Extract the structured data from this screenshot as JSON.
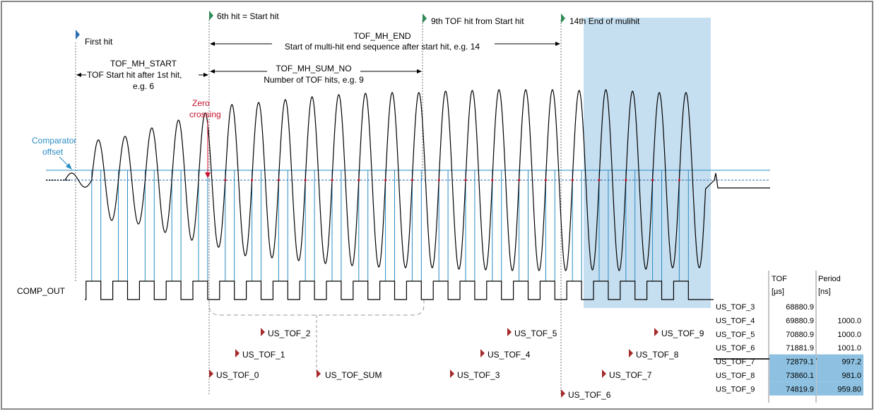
{
  "markers": {
    "first_hit": "First hit",
    "start_hit": "6th hit = Start hit",
    "ninth_hit": "9th TOF hit from Start hit",
    "end_hit": "14th End of mulihit"
  },
  "annotations": {
    "mh_start_title": "TOF_MH_START",
    "mh_start_desc1": "TOF Start hit after 1st hit,",
    "mh_start_desc2": "e.g. 6",
    "mh_end_title": "TOF_MH_END",
    "mh_end_desc": "Start of multi-hit end sequence after start hit, e.g. 14",
    "mh_sum_title": "TOF_MH_SUM_NO",
    "mh_sum_desc": "Number of TOF hits, e.g. 9",
    "zero1": "Zero",
    "zero2": "crossing",
    "comp_offset1": "Comparator",
    "comp_offset2": "offset",
    "comp_out": "COMP_OUT"
  },
  "tof_labels": [
    "US_TOF_0",
    "US_TOF_1",
    "US_TOF_2",
    "US_TOF_3",
    "US_TOF_4",
    "US_TOF_5",
    "US_TOF_6",
    "US_TOF_7",
    "US_TOF_8",
    "US_TOF_9"
  ],
  "tof_sum_label": "US_TOF_SUM",
  "table": {
    "col_tof": "TOF",
    "col_tof_unit": "[µs]",
    "col_period": "Period",
    "col_period_unit": "[ns]",
    "rows": [
      {
        "name": "US_TOF_3",
        "tof": "68880.9",
        "period": ""
      },
      {
        "name": "US_TOF_4",
        "tof": "69880.9",
        "period": "1000.0"
      },
      {
        "name": "US_TOF_5",
        "tof": "70880.9",
        "period": "1000.0"
      },
      {
        "name": "US_TOF_6",
        "tof": "71881.9",
        "period": "1001.0"
      },
      {
        "name": "US_TOF_7",
        "tof": "72879.1",
        "period": "997.2"
      },
      {
        "name": "US_TOF_8",
        "tof": "73860.1",
        "period": "981.0"
      },
      {
        "name": "US_TOF_9",
        "tof": "74819.9",
        "period": "959.80"
      }
    ]
  },
  "colors": {
    "highlight": "#c6dff0",
    "cell_blue": "#8ec1e1",
    "blue_line": "#2b8cc4",
    "red": "#c8102e",
    "green": "#2e8b57",
    "dark_red": "#a52a2a"
  }
}
